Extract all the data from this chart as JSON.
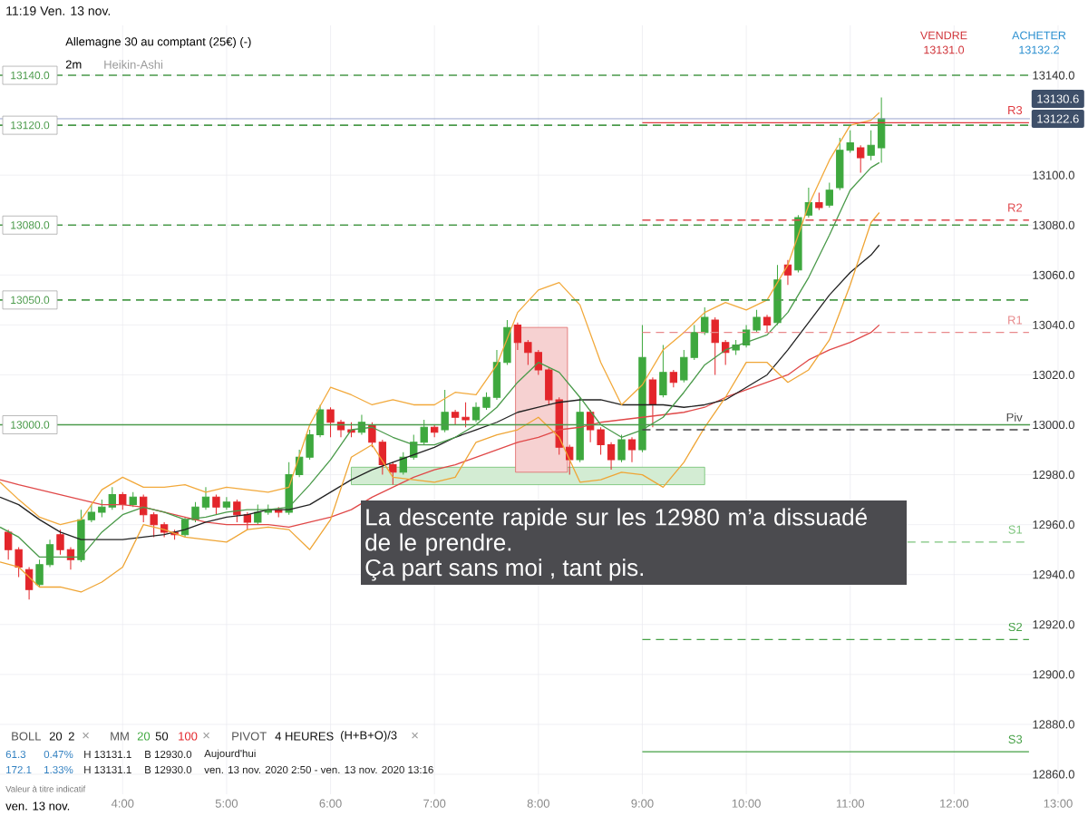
{
  "chart_data": {
    "type": "candlestick",
    "title": "Allemagne 30 au comptant (25€) (-)",
    "subtitle": "2m",
    "x": [
      2.9,
      3.0,
      3.1,
      3.2,
      3.3,
      3.4,
      3.5,
      3.6,
      3.7,
      3.8,
      3.9,
      4.0,
      4.1,
      4.2,
      4.3,
      4.4,
      4.5,
      4.6,
      4.7,
      4.8,
      4.9,
      5.0,
      5.1,
      5.2,
      5.3,
      5.4,
      5.5,
      5.6,
      5.7,
      5.8,
      5.9,
      6.0,
      6.1,
      6.2,
      6.3,
      6.4,
      6.5,
      6.6,
      6.7,
      6.8,
      6.9,
      7.0,
      7.1,
      7.2,
      7.3,
      7.4,
      7.5,
      7.6,
      7.7,
      7.8,
      7.9,
      8.0,
      8.1,
      8.2,
      8.3,
      8.4,
      8.5,
      8.6,
      8.7,
      8.8,
      8.9,
      9.0,
      9.1,
      9.2,
      9.3,
      9.4,
      9.5,
      9.6,
      9.7,
      9.8,
      9.9,
      10.0,
      10.1,
      10.2,
      10.3,
      10.4,
      10.5,
      10.6,
      10.7,
      10.8,
      10.9,
      11.0,
      11.1,
      11.2,
      11.3
    ],
    "ohlc": [
      [
        12957,
        12958,
        12946,
        12950
      ],
      [
        12950,
        12951,
        12939,
        12943
      ],
      [
        12942,
        12943,
        12930,
        12934
      ],
      [
        12936,
        12946,
        12935,
        12944
      ],
      [
        12944,
        12954,
        12943,
        12952
      ],
      [
        12956,
        12958,
        12948,
        12950
      ],
      [
        12950,
        12951,
        12942,
        12946
      ],
      [
        12946,
        12966,
        12945,
        12962
      ],
      [
        12962,
        12968,
        12961,
        12965
      ],
      [
        12965,
        12970,
        12963,
        12967
      ],
      [
        12967,
        12975,
        12966,
        12972
      ],
      [
        12972,
        12973,
        12966,
        12968
      ],
      [
        12968,
        12973,
        12967,
        12971
      ],
      [
        12971,
        12972,
        12961,
        12964
      ],
      [
        12964,
        12965,
        12955,
        12960
      ],
      [
        12960,
        12961,
        12955,
        12957
      ],
      [
        12957,
        12958,
        12954,
        12956
      ],
      [
        12956,
        12963,
        12955,
        12962
      ],
      [
        12962,
        12969,
        12961,
        12967
      ],
      [
        12967,
        12975,
        12966,
        12971
      ],
      [
        12971,
        12972,
        12964,
        12967
      ],
      [
        12967,
        12971,
        12966,
        12969
      ],
      [
        12969,
        12970,
        12961,
        12964
      ],
      [
        12964,
        12965,
        12958,
        12961
      ],
      [
        12961,
        12968,
        12960,
        12965
      ],
      [
        12965,
        12968,
        12964,
        12966
      ],
      [
        12966,
        12967,
        12963,
        12965
      ],
      [
        12965,
        12985,
        12964,
        12980
      ],
      [
        12980,
        12990,
        12979,
        12987
      ],
      [
        12987,
        12998,
        12986,
        12996
      ],
      [
        12996,
        13008,
        12995,
        13006
      ],
      [
        13006,
        13007,
        12995,
        13001
      ],
      [
        13001,
        13002,
        12995,
        12998
      ],
      [
        12998,
        13001,
        12995,
        12997
      ],
      [
        12997,
        13004,
        12996,
        13001
      ],
      [
        13000,
        13001,
        12991,
        12993
      ],
      [
        12993,
        12994,
        12980,
        12984
      ],
      [
        12984,
        12985,
        12976,
        12981
      ],
      [
        12981,
        12989,
        12980,
        12987
      ],
      [
        12987,
        12996,
        12986,
        12993
      ],
      [
        12993,
        13002,
        12992,
        12999
      ],
      [
        12999,
        13000,
        12995,
        12997
      ],
      [
        12998,
        13014,
        12997,
        13005
      ],
      [
        13005,
        13006,
        13000,
        13003
      ],
      [
        13003,
        13009,
        12999,
        13002
      ],
      [
        13002,
        13009,
        13001,
        13007
      ],
      [
        13007,
        13013,
        13006,
        13011
      ],
      [
        13011,
        13030,
        13010,
        13025
      ],
      [
        13025,
        13042,
        13024,
        13039
      ],
      [
        13040,
        13041,
        13030,
        13033
      ],
      [
        13033,
        13034,
        13024,
        13029
      ],
      [
        13029,
        13030,
        13020,
        13022
      ],
      [
        13022,
        13023,
        13008,
        13010
      ],
      [
        13010,
        13011,
        12988,
        12991
      ],
      [
        12991,
        12992,
        12980,
        12986
      ],
      [
        12986,
        13011,
        12985,
        13005
      ],
      [
        13005,
        13006,
        12993,
        12998
      ],
      [
        12998,
        12999,
        12988,
        12992
      ],
      [
        12992,
        12993,
        12982,
        12986
      ],
      [
        12986,
        12996,
        12985,
        12994
      ],
      [
        12994,
        12995,
        12985,
        12990
      ],
      [
        12990,
        13040,
        12989,
        13027
      ],
      [
        13018,
        13019,
        12999,
        13008
      ],
      [
        13012,
        13032,
        13011,
        13021
      ],
      [
        13021,
        13022,
        13015,
        13017
      ],
      [
        13018,
        13030,
        13017,
        13027
      ],
      [
        13027,
        13040,
        13026,
        13037
      ],
      [
        13037,
        13047,
        13036,
        13043
      ],
      [
        13042,
        13043,
        13020,
        13033
      ],
      [
        13033,
        13034,
        13024,
        13029
      ],
      [
        13030,
        13034,
        13028,
        13032
      ],
      [
        13032,
        13040,
        13031,
        13038
      ],
      [
        13038,
        13046,
        13037,
        13043
      ],
      [
        13043,
        13044,
        13037,
        13040
      ],
      [
        13041,
        13064,
        13040,
        13058
      ],
      [
        13064,
        13066,
        13056,
        13060
      ],
      [
        13062,
        13084,
        13061,
        13083
      ],
      [
        13084,
        13095,
        13083,
        13089
      ],
      [
        13089,
        13093,
        13086,
        13087
      ],
      [
        13088,
        13097,
        13087,
        13094
      ],
      [
        13095,
        13115,
        13094,
        13110
      ],
      [
        13110,
        13118,
        13109,
        13113
      ],
      [
        13111,
        13112,
        13101,
        13107
      ],
      [
        13108,
        13118,
        13106,
        13112
      ],
      [
        13111,
        13131.1,
        13105,
        13122.6
      ]
    ],
    "colors": [
      "#e3262b",
      "#e3262b",
      "#e3262b",
      "#3ea83e",
      "#3ea83e",
      "#e3262b",
      "#e3262b",
      "#3ea83e",
      "#3ea83e",
      "#3ea83e",
      "#3ea83e",
      "#e3262b",
      "#3ea83e",
      "#e3262b",
      "#e3262b",
      "#e3262b",
      "#e3262b",
      "#3ea83e",
      "#3ea83e",
      "#3ea83e",
      "#e3262b",
      "#3ea83e",
      "#e3262b",
      "#e3262b",
      "#3ea83e",
      "#3ea83e",
      "#e3262b",
      "#3ea83e",
      "#3ea83e",
      "#3ea83e",
      "#3ea83e",
      "#e3262b",
      "#e3262b",
      "#e3262b",
      "#3ea83e",
      "#e3262b",
      "#e3262b",
      "#e3262b",
      "#3ea83e",
      "#3ea83e",
      "#3ea83e",
      "#e3262b",
      "#3ea83e",
      "#e3262b",
      "#e3262b",
      "#3ea83e",
      "#3ea83e",
      "#3ea83e",
      "#3ea83e",
      "#e3262b",
      "#e3262b",
      "#e3262b",
      "#e3262b",
      "#e3262b",
      "#e3262b",
      "#3ea83e",
      "#e3262b",
      "#e3262b",
      "#e3262b",
      "#3ea83e",
      "#e3262b",
      "#3ea83e",
      "#e3262b",
      "#3ea83e",
      "#e3262b",
      "#3ea83e",
      "#3ea83e",
      "#3ea83e",
      "#e3262b",
      "#e3262b",
      "#3ea83e",
      "#3ea83e",
      "#3ea83e",
      "#e3262b",
      "#3ea83e",
      "#e3262b",
      "#3ea83e",
      "#3ea83e",
      "#e3262b",
      "#3ea83e",
      "#3ea83e",
      "#3ea83e",
      "#e3262b",
      "#3ea83e",
      "#3ea83e"
    ],
    "xlim": [
      2.82,
      13.0
    ],
    "ylim": [
      12852,
      13160
    ],
    "xticks": [
      {
        "value": 4,
        "label": "4:00"
      },
      {
        "value": 5,
        "label": "5:00"
      },
      {
        "value": 6,
        "label": "6:00"
      },
      {
        "value": 7,
        "label": "7:00"
      },
      {
        "value": 8,
        "label": "8:00"
      },
      {
        "value": 9,
        "label": "9:00"
      },
      {
        "value": 10,
        "label": "10:00"
      },
      {
        "value": 11,
        "label": "11:00"
      },
      {
        "value": 12,
        "label": "12:00"
      },
      {
        "value": 13,
        "label": "13:00"
      }
    ],
    "yticks": [
      {
        "value": 12860,
        "label": "12860.0"
      },
      {
        "value": 12880,
        "label": "12880.0"
      },
      {
        "value": 12900,
        "label": "12900.0"
      },
      {
        "value": 12920,
        "label": "12920.0"
      },
      {
        "value": 12940,
        "label": "12940.0"
      },
      {
        "value": 12960,
        "label": "12960.0"
      },
      {
        "value": 12980,
        "label": "12980.0"
      },
      {
        "value": 13000,
        "label": "13000.0"
      },
      {
        "value": 13020,
        "label": "13020.0"
      },
      {
        "value": 13040,
        "label": "13040.0"
      },
      {
        "value": 13060,
        "label": "13060.0"
      },
      {
        "value": 13080,
        "label": "13080.0"
      },
      {
        "value": 13100,
        "label": "13100.0"
      },
      {
        "value": 13120,
        "label": null
      },
      {
        "value": 13140,
        "label": "13140.0"
      }
    ],
    "grid": true,
    "series": [
      {
        "type": "line",
        "x": [
          6.2,
          9.6
        ],
        "values": [
          null,
          null
        ],
        "upper": [
          12983,
          12983
        ],
        "lower": [
          12976,
          12976
        ],
        "color": "#6cbf6c"
      },
      {
        "type": "line",
        "x": [
          7.78,
          8.28
        ],
        "values": [
          null,
          null
        ],
        "upper": [
          13039,
          13039
        ],
        "lower": [
          12981,
          12981
        ],
        "color": "#e06666"
      },
      {
        "type": "line",
        "x": [
          2.82,
          3.0,
          3.2,
          3.4,
          3.6,
          3.8,
          4.0,
          4.2,
          4.4,
          4.6,
          4.8,
          5.0,
          5.2,
          5.4,
          5.6,
          5.8,
          6.0,
          6.2,
          6.4,
          6.6,
          6.8,
          7.0,
          7.2,
          7.4,
          7.6,
          7.8,
          8.0,
          8.2,
          8.4,
          8.6,
          8.8,
          9.0,
          9.2,
          9.4,
          9.6,
          9.8,
          10.0,
          10.2,
          10.4,
          10.6,
          10.8,
          11.0,
          11.2,
          11.28
        ],
        "values": [
          12978,
          12976,
          12974,
          12972,
          12970,
          12968,
          12968,
          12967,
          12965,
          12963,
          12961,
          12960,
          12960,
          12960,
          12959,
          12961,
          12963,
          12966,
          12971,
          12975,
          12979,
          12982,
          12984,
          12987,
          12990,
          12993,
          12995,
          12998,
          12999,
          13001,
          13002,
          13003,
          13004,
          13005,
          13007,
          13011,
          13014,
          13017,
          13020,
          13026,
          13030,
          13033,
          13037,
          13040
        ],
        "color": "#e04848"
      },
      {
        "type": "line",
        "x": [
          2.82,
          3.0,
          3.2,
          3.4,
          3.6,
          3.8,
          4.0,
          4.2,
          4.4,
          4.6,
          4.8,
          5.0,
          5.2,
          5.4,
          5.6,
          5.8,
          6.0,
          6.2,
          6.4,
          6.6,
          6.8,
          7.0,
          7.2,
          7.4,
          7.6,
          7.8,
          8.0,
          8.2,
          8.4,
          8.6,
          8.8,
          9.0,
          9.2,
          9.4,
          9.6,
          9.8,
          10.0,
          10.2,
          10.4,
          10.6,
          10.8,
          11.0,
          11.2,
          11.28
        ],
        "values": [
          12971,
          12968,
          12962,
          12957,
          12954,
          12954,
          12954,
          12955,
          12956,
          12958,
          12961,
          12963,
          12964,
          12966,
          12966,
          12968,
          12973,
          12978,
          12982,
          12985,
          12988,
          12991,
          12995,
          12998,
          13001,
          13005,
          13007,
          13009,
          13010,
          13010,
          13008,
          13008,
          13008,
          13007,
          13008,
          13010,
          13015,
          13020,
          13030,
          13041,
          13052,
          13061,
          13068,
          13072
        ],
        "color": "#222222"
      },
      {
        "type": "line",
        "x": [
          2.82,
          3.0,
          3.2,
          3.4,
          3.6,
          3.8,
          4.0,
          4.2,
          4.4,
          4.6,
          4.8,
          5.0,
          5.2,
          5.4,
          5.6,
          5.8,
          6.0,
          6.2,
          6.4,
          6.6,
          6.8,
          7.0,
          7.2,
          7.4,
          7.6,
          7.8,
          8.0,
          8.2,
          8.4,
          8.6,
          8.8,
          9.0,
          9.2,
          9.4,
          9.6,
          9.8,
          10.0,
          10.2,
          10.4,
          10.6,
          10.8,
          11.0,
          11.2,
          11.28
        ],
        "values": [
          12959,
          12955,
          12947,
          12947,
          12947,
          12957,
          12964,
          12967,
          12965,
          12962,
          12963,
          12965,
          12966,
          12966,
          12967,
          12976,
          12986,
          12998,
          12999,
          12995,
          12992,
          12992,
          12995,
          13000,
          13007,
          13017,
          13025,
          13021,
          13011,
          13000,
          12995,
          12998,
          13003,
          13013,
          13024,
          13030,
          13033,
          13036,
          13045,
          13059,
          13076,
          13094,
          13103,
          13105
        ],
        "color": "#4a9a4a"
      },
      {
        "type": "line",
        "x": [
          2.82,
          3.0,
          3.2,
          3.4,
          3.6,
          3.8,
          4.0,
          4.2,
          4.4,
          4.6,
          4.8,
          5.0,
          5.2,
          5.4,
          5.6,
          5.8,
          6.0,
          6.2,
          6.4,
          6.6,
          6.8,
          7.0,
          7.2,
          7.4,
          7.6,
          7.8,
          8.0,
          8.2,
          8.4,
          8.6,
          8.8,
          9.0,
          9.2,
          9.4,
          9.6,
          9.8,
          10.0,
          10.2,
          10.4,
          10.6,
          10.8,
          11.0,
          11.2,
          11.28
        ],
        "values": [
          12977,
          12970,
          12963,
          12960,
          12962,
          12974,
          12979,
          12975,
          12975,
          12976,
          12973,
          12975,
          12974,
          12973,
          12975,
          13000,
          13015,
          13012,
          13008,
          13010,
          13008,
          13008,
          13013,
          13012,
          13024,
          13045,
          13054,
          13057,
          13048,
          13025,
          13008,
          13016,
          13030,
          13037,
          13045,
          13049,
          13046,
          13050,
          13064,
          13088,
          13106,
          13120,
          13122,
          13125
        ],
        "color": "#f2a93b"
      },
      {
        "type": "line",
        "x": [
          2.82,
          3.0,
          3.2,
          3.4,
          3.6,
          3.8,
          4.0,
          4.2,
          4.4,
          4.6,
          4.8,
          5.0,
          5.2,
          5.4,
          5.6,
          5.8,
          6.0,
          6.2,
          6.4,
          6.6,
          6.8,
          7.0,
          7.2,
          7.4,
          7.6,
          7.8,
          8.0,
          8.2,
          8.4,
          8.6,
          8.8,
          9.0,
          9.2,
          9.4,
          9.6,
          9.8,
          10.0,
          10.2,
          10.4,
          10.6,
          10.8,
          11.0,
          11.2,
          11.28
        ],
        "values": [
          12945,
          12943,
          12935,
          12935,
          12933,
          12937,
          12943,
          12960,
          12958,
          12955,
          12954,
          12953,
          12958,
          12959,
          12958,
          12950,
          12962,
          12987,
          12992,
          12979,
          12978,
          12977,
          12979,
          12993,
          12996,
          12998,
          13003,
          12995,
          12977,
          12978,
          12981,
          12980,
          12975,
          12985,
          12999,
          13011,
          13025,
          13025,
          13017,
          13022,
          13034,
          13056,
          13081,
          13085
        ],
        "color": "#efa535"
      },
      {
        "type": "line",
        "name": "R3",
        "x": [
          9.0,
          12.72
        ],
        "values": [
          13121,
          13121
        ],
        "color": "#e0383e",
        "line_style": "solid"
      },
      {
        "type": "line",
        "name": "R2",
        "x": [
          9.0,
          12.72
        ],
        "values": [
          13082,
          13082
        ],
        "color": "#e0474c",
        "line_style": "dashed"
      },
      {
        "type": "line",
        "name": "R1",
        "x": [
          9.0,
          12.72
        ],
        "values": [
          13037,
          13037
        ],
        "color": "#e88a8c",
        "line_style": "dashed"
      },
      {
        "type": "line",
        "name": "Piv",
        "x": [
          9.0,
          12.72
        ],
        "values": [
          12998,
          12998
        ],
        "color": "#444444",
        "line_style": "dashed"
      },
      {
        "type": "line",
        "name": "S1",
        "x": [
          11.55,
          12.72
        ],
        "values": [
          12953,
          12953
        ],
        "color": "#7cc47c",
        "line_style": "dashed"
      },
      {
        "type": "line",
        "name": "S2",
        "x": [
          9.0,
          12.72
        ],
        "values": [
          12914,
          12914
        ],
        "color": "#45a045",
        "line_style": "dashed"
      },
      {
        "type": "line",
        "name": "S3",
        "x": [
          9.0,
          12.72
        ],
        "values": [
          12869,
          12869
        ],
        "color": "#45a045",
        "line_style": "solid"
      }
    ],
    "ref_lines": [
      {
        "axis": "y",
        "value": 13140,
        "label": "13140.0",
        "color": "#4b9b4b",
        "line_style": "dashed"
      },
      {
        "axis": "y",
        "value": 13120,
        "label": "13120.0",
        "color": "#4b9b4b",
        "line_style": "dashed"
      },
      {
        "axis": "y",
        "value": 13080,
        "label": "13080.0",
        "color": "#4b9b4b",
        "line_style": "dashed"
      },
      {
        "axis": "y",
        "value": 13050,
        "label": "13050.0",
        "color": "#4b9b4b",
        "line_style": "dashed"
      },
      {
        "axis": "y",
        "value": 13000,
        "label": "13000.0",
        "color": "#4b9b4b",
        "line_style": "solid"
      },
      {
        "axis": "y",
        "value": 13122.6,
        "color": "#8e9ac8",
        "line_style": "solid"
      }
    ],
    "annotations": [
      "11:19",
      "Ven. 13 nov.",
      "VENDRE",
      "13131.0",
      "ACHETER",
      "13132.2",
      "Heikin-Ashi",
      "La descente rapide sur les 12980 m’a dissuadé de le prendre.",
      "Ça part sans moi , tant pis.",
      "13130.6",
      "13122.6",
      "BOLL",
      "20",
      "2",
      "×",
      "MM",
      "20",
      "50",
      "100",
      "×",
      "PIVOT",
      "4 HEURES",
      "(H+B+O)/3",
      "×",
      "61.3",
      "0.47%",
      "H 13131.1",
      "B 12930.0",
      "Aujourd'hui",
      "172.1",
      "1.33%",
      "H 13131.1",
      "B 12930.0",
      "ven. 13 nov. 2020 2:50 - ven. 13 nov. 2020 13:16",
      "Valeur à titre indicatif",
      "ven. 13 nov."
    ]
  }
}
